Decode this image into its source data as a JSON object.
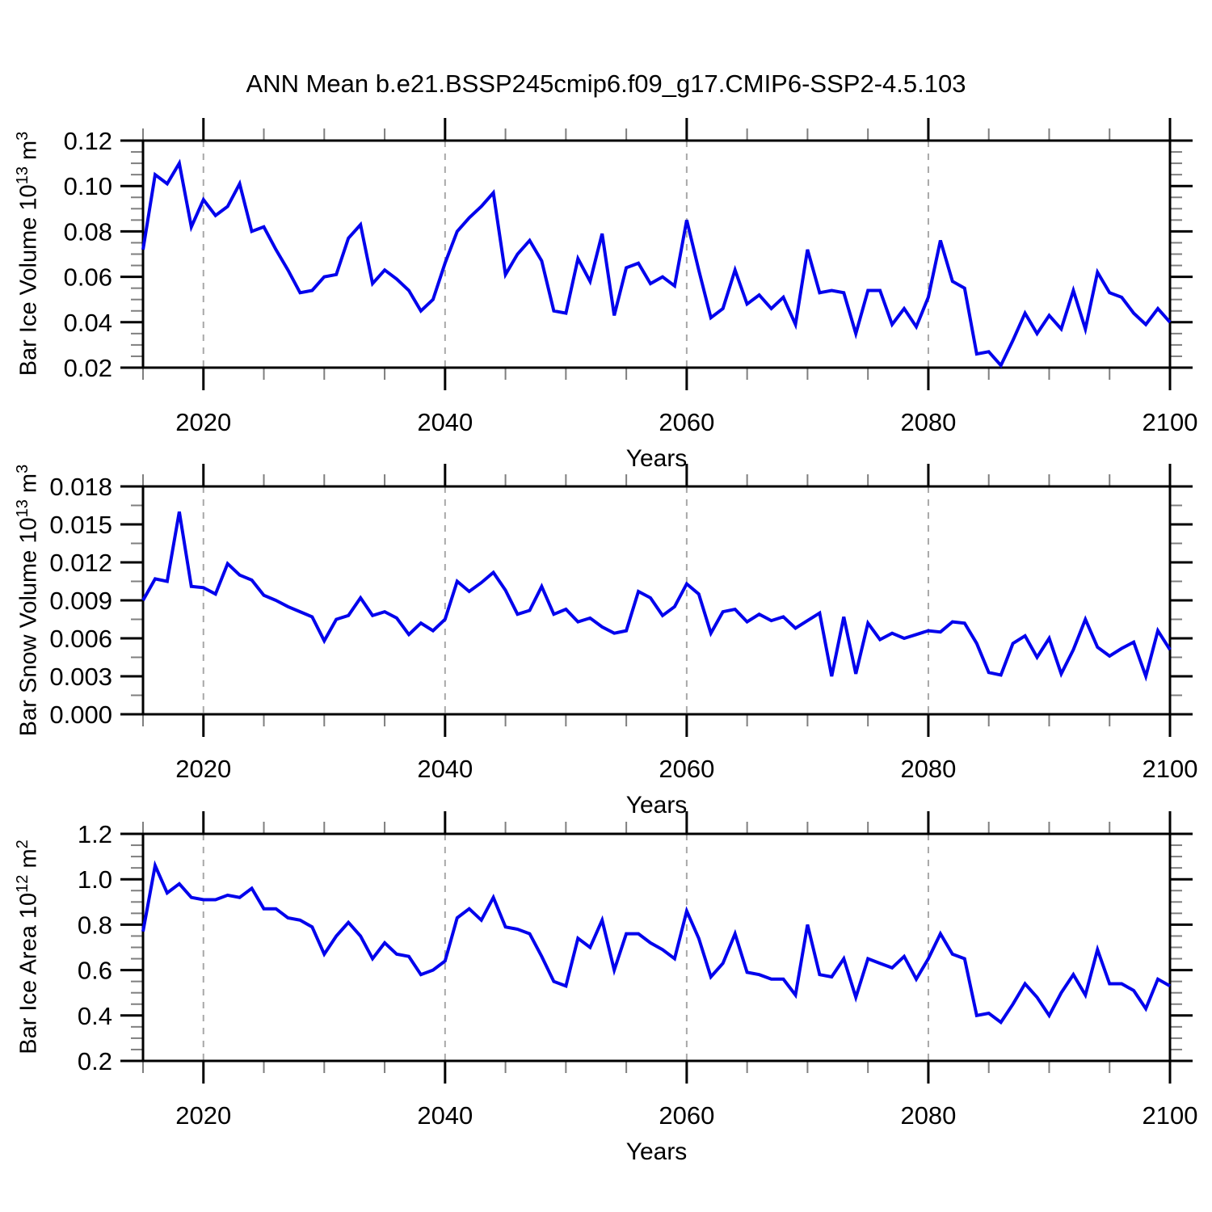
{
  "title": "ANN Mean b.e21.BSSP245cmip6.f09_g17.CMIP6-SSP2-4.5.103",
  "colors": {
    "line": "#0202EC",
    "grid": "#A8A8A8",
    "axis": "#000000",
    "minor_tick": "#7F7F7F",
    "text": "#000000"
  },
  "chart_data": [
    {
      "type": "line",
      "name": "bar-ice-volume",
      "ylabel": {
        "base": "Bar Ice Volume 10",
        "exp": "13",
        "unit": " m",
        "unit_exp": "3"
      },
      "xlabel": "Years",
      "x_start": 2015,
      "x_end": 2100,
      "x_step": 1,
      "xticks": {
        "values": [
          2020,
          2040,
          2060,
          2080,
          2100
        ],
        "labels": [
          "2020",
          "2040",
          "2060",
          "2080",
          "2100"
        ]
      },
      "x_minor_step": 5,
      "ylim": [
        0.02,
        0.12
      ],
      "yticks": {
        "values": [
          0.02,
          0.04,
          0.06,
          0.08,
          0.1,
          0.12
        ],
        "labels": [
          "0.02",
          "0.04",
          "0.06",
          "0.08",
          "0.10",
          "0.12"
        ]
      },
      "y_minor_step": 0.005,
      "grid_x": [
        2020,
        2040,
        2060,
        2080
      ],
      "legend_position": "none",
      "values": [
        0.072,
        0.105,
        0.101,
        0.11,
        0.082,
        0.094,
        0.087,
        0.091,
        0.101,
        0.08,
        0.082,
        0.072,
        0.063,
        0.053,
        0.054,
        0.06,
        0.061,
        0.077,
        0.083,
        0.057,
        0.063,
        0.059,
        0.054,
        0.045,
        0.05,
        0.066,
        0.08,
        0.086,
        0.091,
        0.097,
        0.061,
        0.07,
        0.076,
        0.067,
        0.045,
        0.044,
        0.068,
        0.058,
        0.079,
        0.043,
        0.064,
        0.066,
        0.057,
        0.06,
        0.056,
        0.085,
        0.063,
        0.042,
        0.046,
        0.063,
        0.048,
        0.052,
        0.046,
        0.051,
        0.039,
        0.072,
        0.053,
        0.054,
        0.053,
        0.035,
        0.054,
        0.054,
        0.039,
        0.046,
        0.038,
        0.051,
        0.076,
        0.058,
        0.055,
        0.026,
        0.027,
        0.021,
        0.032,
        0.044,
        0.035,
        0.043,
        0.037,
        0.054,
        0.037,
        0.062,
        0.053,
        0.051,
        0.044,
        0.039,
        0.046,
        0.04
      ]
    },
    {
      "type": "line",
      "name": "bar-snow-volume",
      "ylabel": {
        "base": "Bar Snow Volume 10",
        "exp": "13",
        "unit": " m",
        "unit_exp": "3"
      },
      "xlabel": "Years",
      "x_start": 2015,
      "x_end": 2100,
      "x_step": 1,
      "xticks": {
        "values": [
          2020,
          2040,
          2060,
          2080,
          2100
        ],
        "labels": [
          "2020",
          "2040",
          "2060",
          "2080",
          "2100"
        ]
      },
      "x_minor_step": 5,
      "ylim": [
        0.0,
        0.018
      ],
      "yticks": {
        "values": [
          0.0,
          0.003,
          0.006,
          0.009,
          0.012,
          0.015,
          0.018
        ],
        "labels": [
          "0.000",
          "0.003",
          "0.006",
          "0.009",
          "0.012",
          "0.015",
          "0.018"
        ]
      },
      "y_minor_step": 0.0015,
      "grid_x": [
        2020,
        2040,
        2060,
        2080
      ],
      "legend_position": "none",
      "values": [
        0.009,
        0.0107,
        0.0105,
        0.016,
        0.0101,
        0.01,
        0.0095,
        0.0119,
        0.011,
        0.0106,
        0.0094,
        0.009,
        0.0085,
        0.0081,
        0.0077,
        0.0058,
        0.0075,
        0.0078,
        0.0092,
        0.0078,
        0.0081,
        0.0076,
        0.0063,
        0.0072,
        0.0066,
        0.0075,
        0.0105,
        0.0097,
        0.0104,
        0.0112,
        0.0098,
        0.0079,
        0.0082,
        0.0101,
        0.0079,
        0.0083,
        0.0073,
        0.0076,
        0.0069,
        0.0064,
        0.0066,
        0.0097,
        0.0092,
        0.0078,
        0.0085,
        0.0103,
        0.0095,
        0.0064,
        0.0081,
        0.0083,
        0.0073,
        0.0079,
        0.0074,
        0.0077,
        0.0068,
        0.0074,
        0.008,
        0.003,
        0.0077,
        0.0032,
        0.0072,
        0.0059,
        0.0064,
        0.006,
        0.0063,
        0.0066,
        0.0065,
        0.0073,
        0.0072,
        0.0056,
        0.0033,
        0.0031,
        0.0056,
        0.0062,
        0.0045,
        0.006,
        0.0032,
        0.0051,
        0.0075,
        0.0053,
        0.0046,
        0.0052,
        0.0057,
        0.003,
        0.0066,
        0.0051
      ]
    },
    {
      "type": "line",
      "name": "bar-ice-area",
      "ylabel": {
        "base": "Bar Ice Area 10",
        "exp": "12",
        "unit": " m",
        "unit_exp": "2"
      },
      "xlabel": "Years",
      "x_start": 2015,
      "x_end": 2100,
      "x_step": 1,
      "xticks": {
        "values": [
          2020,
          2040,
          2060,
          2080,
          2100
        ],
        "labels": [
          "2020",
          "2040",
          "2060",
          "2080",
          "2100"
        ]
      },
      "x_minor_step": 5,
      "ylim": [
        0.2,
        1.2
      ],
      "yticks": {
        "values": [
          0.2,
          0.4,
          0.6,
          0.8,
          1.0,
          1.2
        ],
        "labels": [
          "0.2",
          "0.4",
          "0.6",
          "0.8",
          "1.0",
          "1.2"
        ]
      },
      "y_minor_step": 0.05,
      "grid_x": [
        2020,
        2040,
        2060,
        2080
      ],
      "legend_position": "none",
      "values": [
        0.77,
        1.06,
        0.94,
        0.98,
        0.92,
        0.91,
        0.91,
        0.93,
        0.92,
        0.96,
        0.87,
        0.87,
        0.83,
        0.82,
        0.79,
        0.67,
        0.75,
        0.81,
        0.75,
        0.65,
        0.72,
        0.67,
        0.66,
        0.58,
        0.6,
        0.64,
        0.83,
        0.87,
        0.82,
        0.92,
        0.79,
        0.78,
        0.76,
        0.66,
        0.55,
        0.53,
        0.74,
        0.7,
        0.82,
        0.6,
        0.76,
        0.76,
        0.72,
        0.69,
        0.65,
        0.86,
        0.74,
        0.57,
        0.63,
        0.76,
        0.59,
        0.58,
        0.56,
        0.56,
        0.49,
        0.8,
        0.58,
        0.57,
        0.65,
        0.48,
        0.65,
        0.63,
        0.61,
        0.66,
        0.56,
        0.65,
        0.76,
        0.67,
        0.65,
        0.4,
        0.41,
        0.37,
        0.45,
        0.54,
        0.48,
        0.4,
        0.5,
        0.58,
        0.49,
        0.69,
        0.54,
        0.54,
        0.51,
        0.43,
        0.56,
        0.53
      ]
    }
  ]
}
